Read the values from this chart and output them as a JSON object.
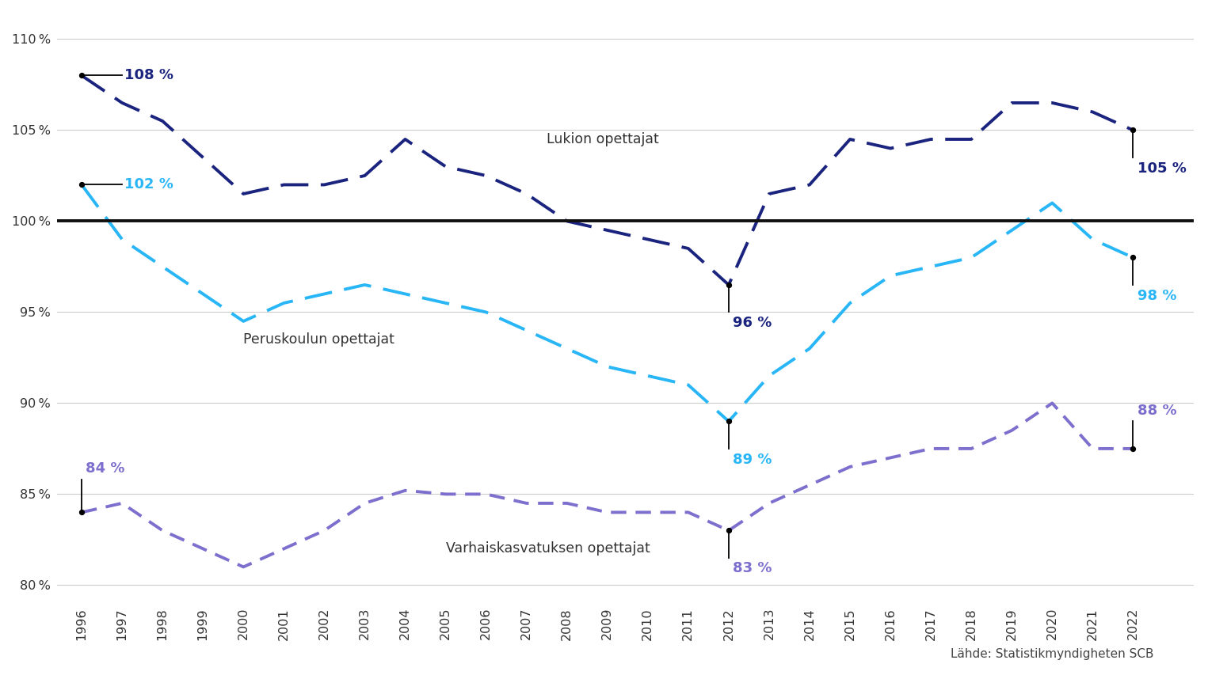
{
  "years": [
    1996,
    1997,
    1998,
    1999,
    2000,
    2001,
    2002,
    2003,
    2004,
    2005,
    2006,
    2007,
    2008,
    2009,
    2010,
    2011,
    2012,
    2013,
    2014,
    2015,
    2016,
    2017,
    2018,
    2019,
    2020,
    2021,
    2022
  ],
  "lukio": [
    108,
    106.5,
    105.5,
    103.5,
    101.5,
    102,
    102,
    102.5,
    104.5,
    103,
    102.5,
    101.5,
    100,
    99.5,
    99,
    98.5,
    96.5,
    101.5,
    102,
    104.5,
    104,
    104.5,
    104.5,
    106.5,
    106.5,
    106,
    105
  ],
  "perus": [
    102,
    99,
    97.5,
    96,
    94.5,
    95.5,
    96,
    96.5,
    96,
    95.5,
    95,
    94,
    93,
    92,
    91.5,
    91,
    89,
    91.5,
    93,
    95.5,
    97,
    97.5,
    98,
    99.5,
    101,
    99,
    98
  ],
  "varhais": [
    84,
    84.5,
    83,
    82,
    81,
    82,
    83,
    84.5,
    85.2,
    85,
    85,
    84.5,
    84.5,
    84,
    84,
    84,
    83,
    84.5,
    85.5,
    86.5,
    87,
    87.5,
    87.5,
    88.5,
    90,
    87.5,
    87.5
  ],
  "reference_value": 100,
  "lukio_color": "#1a237e",
  "perus_color": "#29b6f6",
  "varhais_color": "#7c6fcd",
  "reference_color": "#111111",
  "label_lukio": "Lukion opettajat",
  "label_perus": "Peruskoulun opettajat",
  "label_varhais": "Varhaiskasvatuksen opettajat",
  "source_text": "Lähde: Statistikmyndigheten SCB",
  "ylim_min": 79,
  "ylim_max": 111.5,
  "yticks": [
    80,
    85,
    90,
    95,
    100,
    105,
    110
  ],
  "background_color": "#ffffff"
}
